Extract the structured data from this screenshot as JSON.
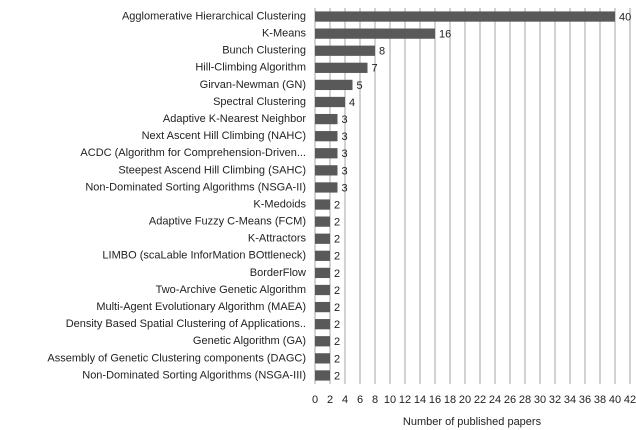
{
  "chart_data": {
    "type": "bar",
    "orientation": "horizontal",
    "x_label": "Number of published papers",
    "categories": [
      "Agglomerative Hierarchical Clustering",
      "K-Means",
      "Bunch Clustering",
      "Hill-Climbing Algorithm",
      "Girvan-Newman (GN)",
      "Spectral Clustering",
      "Adaptive K-Nearest Neighbor",
      "Next Ascent Hill Climbing (NAHC)",
      "ACDC (Algorithm for Comprehension-Driven...",
      "Steepest Ascend Hill Climbing (SAHC)",
      "Non-Dominated Sorting Algorithms (NSGA-II)",
      "K-Medoids",
      "Adaptive Fuzzy C-Means (FCM)",
      "K-Attractors",
      "LIMBO (scaLable InforMation BOttleneck)",
      "BorderFlow",
      "Two-Archive Genetic Algorithm",
      "Multi-Agent Evolutionary Algorithm (MAEA)",
      "Density Based Spatial Clustering of Applications..",
      "Genetic Algorithm (GA)",
      "Assembly of Genetic Clustering components (DAGC)",
      "Non-Dominated Sorting Algorithms (NSGA-III)"
    ],
    "values": [
      40,
      16,
      8,
      7,
      5,
      4,
      3,
      3,
      3,
      3,
      3,
      2,
      2,
      2,
      2,
      2,
      2,
      2,
      2,
      2,
      2,
      2
    ],
    "color": "#595959",
    "xlim": [
      0,
      42
    ],
    "xticks": [
      0,
      2,
      4,
      6,
      8,
      10,
      12,
      14,
      16,
      18,
      20,
      22,
      24,
      26,
      28,
      30,
      32,
      34,
      36,
      38,
      40,
      42
    ],
    "grid": true
  }
}
